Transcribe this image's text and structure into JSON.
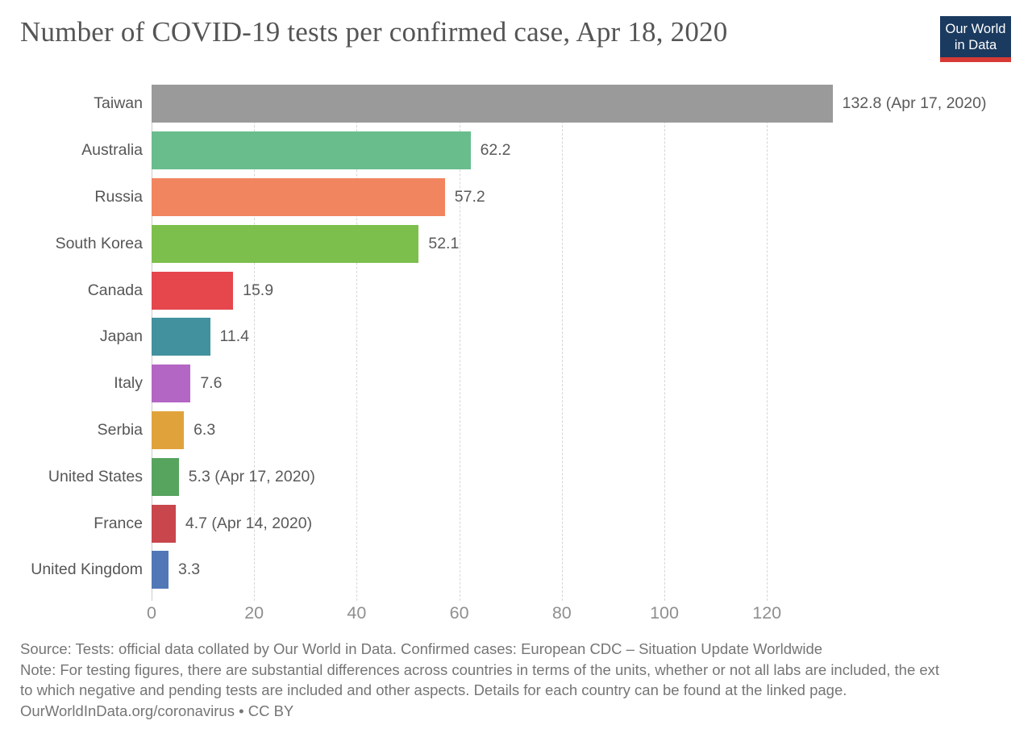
{
  "header": {
    "logo": {
      "line1": "Our World",
      "line2": "in Data"
    }
  },
  "chart_data": {
    "type": "bar",
    "orientation": "horizontal",
    "title": "Number of COVID-19 tests per confirmed case, Apr 18, 2020",
    "categories": [
      "Taiwan",
      "Australia",
      "Russia",
      "South Korea",
      "Canada",
      "Japan",
      "Italy",
      "Serbia",
      "United States",
      "France",
      "United Kingdom"
    ],
    "values": [
      132.8,
      62.2,
      57.2,
      52.1,
      15.9,
      11.4,
      7.6,
      6.3,
      5.3,
      4.7,
      3.3
    ],
    "value_labels": [
      "132.8 (Apr 17, 2020)",
      "62.2",
      "57.2",
      "52.1",
      "15.9",
      "11.4",
      "7.6",
      "6.3",
      "5.3 (Apr 17, 2020)",
      "4.7 (Apr 14, 2020)",
      "3.3"
    ],
    "bar_colors": [
      "#9a9a9a",
      "#69bd8d",
      "#f1855f",
      "#7dbf4d",
      "#e5474d",
      "#42919e",
      "#b466c5",
      "#e0a33c",
      "#57a45f",
      "#c9464c",
      "#5177b7"
    ],
    "x_ticks": [
      0,
      20,
      40,
      60,
      80,
      100,
      120
    ],
    "xlim": [
      0,
      171
    ],
    "xlabel": "",
    "ylabel": "",
    "legend": "none",
    "grid": "vertical-dashed"
  },
  "footer": {
    "source": "Source: Tests: official data collated by Our World in Data. Confirmed cases: European CDC – Situation Update Worldwide",
    "note_line1": "Note: For testing figures, there are substantial differences across countries in terms of the units, whether or not all labs are included, the ext",
    "note_line2": "to which negative and pending tests are included and other aspects. Details for each country can be found at the linked page.",
    "credit": "OurWorldInData.org/coronavirus • CC BY"
  },
  "colors": {
    "logo_bg": "#1b3a5f",
    "logo_accent": "#d73a34",
    "title_text": "#555555",
    "label_text": "#565656",
    "value_text": "#5a5a5a",
    "axis_text": "#8f8f8f",
    "footer_text": "#757575",
    "gridline": "#d6d6d6",
    "zero_line": "#cccccc"
  }
}
